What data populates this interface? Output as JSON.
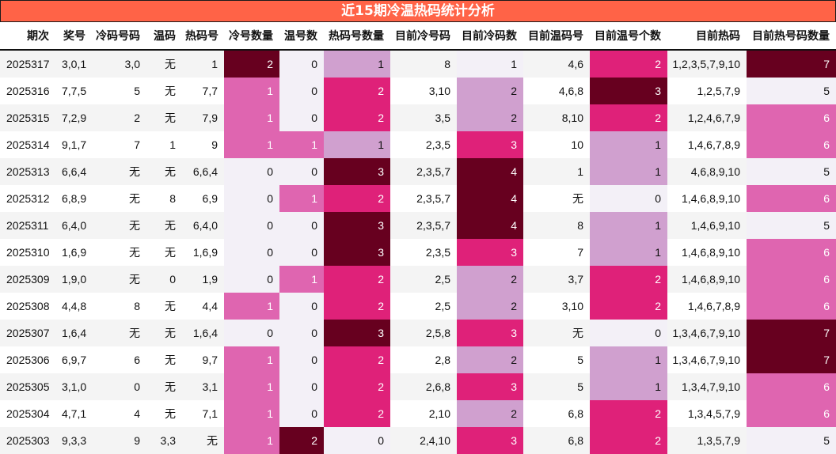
{
  "title": "近15期冷温热码统计分析",
  "columns": [
    "期次",
    "奖号",
    "冷码号码",
    "温码",
    "热码号",
    "冷号数量",
    "温号数",
    "热码号数量",
    "目前冷号码",
    "目前冷码数",
    "目前温码号",
    "目前温号个数",
    "目前热码",
    "目前热号码数量"
  ],
  "colors": {
    "title_bg": "#ff6347",
    "heat_levels": [
      "#f3f0f7",
      "#d0a0cf",
      "#df65b0",
      "#df2179",
      "#67001f"
    ]
  },
  "rows": [
    {
      "period": "2025317",
      "draw": "3,0,1",
      "cold": "3,0",
      "warm": "无",
      "hot": "1",
      "cold_n": "2",
      "warm_n": "0",
      "hot_n": "1",
      "cur_cold": "8",
      "cur_cold_n": "1",
      "cur_warm": "4,6",
      "cur_warm_n": "2",
      "cur_hot": "1,2,3,5,7,9,10",
      "cur_hot_n": "7"
    },
    {
      "period": "2025316",
      "draw": "7,7,5",
      "cold": "5",
      "warm": "无",
      "hot": "7,7",
      "cold_n": "1",
      "warm_n": "0",
      "hot_n": "2",
      "cur_cold": "3,10",
      "cur_cold_n": "2",
      "cur_warm": "4,6,8",
      "cur_warm_n": "3",
      "cur_hot": "1,2,5,7,9",
      "cur_hot_n": "5"
    },
    {
      "period": "2025315",
      "draw": "7,2,9",
      "cold": "2",
      "warm": "无",
      "hot": "7,9",
      "cold_n": "1",
      "warm_n": "0",
      "hot_n": "2",
      "cur_cold": "3,5",
      "cur_cold_n": "2",
      "cur_warm": "8,10",
      "cur_warm_n": "2",
      "cur_hot": "1,2,4,6,7,9",
      "cur_hot_n": "6"
    },
    {
      "period": "2025314",
      "draw": "9,1,7",
      "cold": "7",
      "warm": "1",
      "hot": "9",
      "cold_n": "1",
      "warm_n": "1",
      "hot_n": "1",
      "cur_cold": "2,3,5",
      "cur_cold_n": "3",
      "cur_warm": "10",
      "cur_warm_n": "1",
      "cur_hot": "1,4,6,7,8,9",
      "cur_hot_n": "6"
    },
    {
      "period": "2025313",
      "draw": "6,6,4",
      "cold": "无",
      "warm": "无",
      "hot": "6,6,4",
      "cold_n": "0",
      "warm_n": "0",
      "hot_n": "3",
      "cur_cold": "2,3,5,7",
      "cur_cold_n": "4",
      "cur_warm": "1",
      "cur_warm_n": "1",
      "cur_hot": "4,6,8,9,10",
      "cur_hot_n": "5"
    },
    {
      "period": "2025312",
      "draw": "6,8,9",
      "cold": "无",
      "warm": "8",
      "hot": "6,9",
      "cold_n": "0",
      "warm_n": "1",
      "hot_n": "2",
      "cur_cold": "2,3,5,7",
      "cur_cold_n": "4",
      "cur_warm": "无",
      "cur_warm_n": "0",
      "cur_hot": "1,4,6,8,9,10",
      "cur_hot_n": "6"
    },
    {
      "period": "2025311",
      "draw": "6,4,0",
      "cold": "无",
      "warm": "无",
      "hot": "6,4,0",
      "cold_n": "0",
      "warm_n": "0",
      "hot_n": "3",
      "cur_cold": "2,3,5,7",
      "cur_cold_n": "4",
      "cur_warm": "8",
      "cur_warm_n": "1",
      "cur_hot": "1,4,6,9,10",
      "cur_hot_n": "5"
    },
    {
      "period": "2025310",
      "draw": "1,6,9",
      "cold": "无",
      "warm": "无",
      "hot": "1,6,9",
      "cold_n": "0",
      "warm_n": "0",
      "hot_n": "3",
      "cur_cold": "2,3,5",
      "cur_cold_n": "3",
      "cur_warm": "7",
      "cur_warm_n": "1",
      "cur_hot": "1,4,6,8,9,10",
      "cur_hot_n": "6"
    },
    {
      "period": "2025309",
      "draw": "1,9,0",
      "cold": "无",
      "warm": "0",
      "hot": "1,9",
      "cold_n": "0",
      "warm_n": "1",
      "hot_n": "2",
      "cur_cold": "2,5",
      "cur_cold_n": "2",
      "cur_warm": "3,7",
      "cur_warm_n": "2",
      "cur_hot": "1,4,6,8,9,10",
      "cur_hot_n": "6"
    },
    {
      "period": "2025308",
      "draw": "4,4,8",
      "cold": "8",
      "warm": "无",
      "hot": "4,4",
      "cold_n": "1",
      "warm_n": "0",
      "hot_n": "2",
      "cur_cold": "2,5",
      "cur_cold_n": "2",
      "cur_warm": "3,10",
      "cur_warm_n": "2",
      "cur_hot": "1,4,6,7,8,9",
      "cur_hot_n": "6"
    },
    {
      "period": "2025307",
      "draw": "1,6,4",
      "cold": "无",
      "warm": "无",
      "hot": "1,6,4",
      "cold_n": "0",
      "warm_n": "0",
      "hot_n": "3",
      "cur_cold": "2,5,8",
      "cur_cold_n": "3",
      "cur_warm": "无",
      "cur_warm_n": "0",
      "cur_hot": "1,3,4,6,7,9,10",
      "cur_hot_n": "7"
    },
    {
      "period": "2025306",
      "draw": "6,9,7",
      "cold": "6",
      "warm": "无",
      "hot": "9,7",
      "cold_n": "1",
      "warm_n": "0",
      "hot_n": "2",
      "cur_cold": "2,8",
      "cur_cold_n": "2",
      "cur_warm": "5",
      "cur_warm_n": "1",
      "cur_hot": "1,3,4,6,7,9,10",
      "cur_hot_n": "7"
    },
    {
      "period": "2025305",
      "draw": "3,1,0",
      "cold": "0",
      "warm": "无",
      "hot": "3,1",
      "cold_n": "1",
      "warm_n": "0",
      "hot_n": "2",
      "cur_cold": "2,6,8",
      "cur_cold_n": "3",
      "cur_warm": "5",
      "cur_warm_n": "1",
      "cur_hot": "1,3,4,7,9,10",
      "cur_hot_n": "6"
    },
    {
      "period": "2025304",
      "draw": "4,7,1",
      "cold": "4",
      "warm": "无",
      "hot": "7,1",
      "cold_n": "1",
      "warm_n": "0",
      "hot_n": "2",
      "cur_cold": "2,10",
      "cur_cold_n": "2",
      "cur_warm": "6,8",
      "cur_warm_n": "2",
      "cur_hot": "1,3,4,5,7,9",
      "cur_hot_n": "6"
    },
    {
      "period": "2025303",
      "draw": "9,3,3",
      "cold": "9",
      "warm": "3,3",
      "hot": "无",
      "cold_n": "1",
      "warm_n": "2",
      "hot_n": "0",
      "cur_cold": "2,4,10",
      "cur_cold_n": "3",
      "cur_warm": "6,8",
      "cur_warm_n": "2",
      "cur_hot": "1,3,5,7,9",
      "cur_hot_n": "5"
    }
  ],
  "heat_levels": {
    "cold_n": {
      "0": 0,
      "1": 2,
      "2": 4
    },
    "warm_n": {
      "0": 0,
      "1": 2,
      "2": 4
    },
    "hot_n": {
      "0": 0,
      "1": 1,
      "2": 3,
      "3": 4
    },
    "cur_cold_n": {
      "1": 0,
      "2": 1,
      "3": 3,
      "4": 4
    },
    "cur_warm_n": {
      "0": 0,
      "1": 1,
      "2": 3,
      "3": 4
    },
    "cur_hot_n": {
      "5": 0,
      "6": 2,
      "7": 4
    }
  }
}
